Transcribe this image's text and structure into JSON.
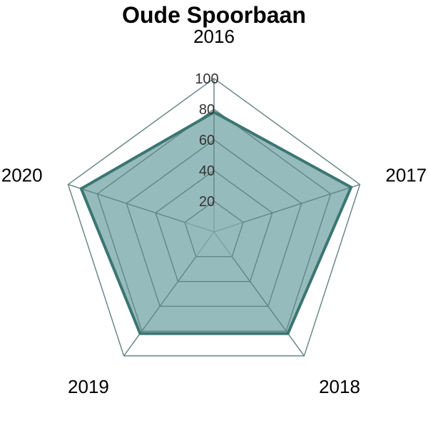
{
  "chart_data": {
    "type": "radar",
    "title": "Oude Spoorbaan",
    "categories": [
      "2016",
      "2017",
      "2018",
      "2019",
      "2020"
    ],
    "series": [
      {
        "values": [
          78,
          94,
          82,
          82,
          91
        ]
      }
    ],
    "rlim": [
      0,
      100
    ],
    "ticks": [
      "20",
      "40",
      "60",
      "80",
      "100"
    ],
    "tick_values": [
      20,
      40,
      60,
      80,
      100
    ],
    "grid": true,
    "colors": {
      "fill": "#6a9ea0",
      "line": "#3b7672",
      "outer_grid": "#b0b0b0",
      "inner_grid": "#5f8583"
    }
  }
}
